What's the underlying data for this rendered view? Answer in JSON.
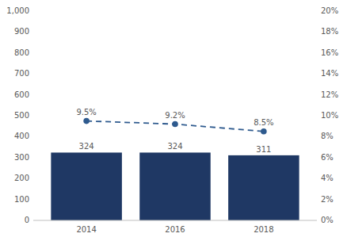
{
  "chart_data": {
    "type": "bar",
    "x": [
      2014,
      2016,
      2018
    ],
    "xlim": [
      2012.8,
      2019.2
    ],
    "xticks": [
      2014,
      2016,
      2018
    ],
    "ylim": [
      0,
      1000
    ],
    "yticks": [
      0,
      100,
      200,
      300,
      400,
      500,
      600,
      700,
      800,
      900,
      {
        "value": 1000,
        "label": "1,000"
      }
    ],
    "y2lim": [
      0,
      20
    ],
    "y2ticks": [
      {
        "value": 0,
        "label": "0%"
      },
      {
        "value": 2,
        "label": "2%"
      },
      {
        "value": 4,
        "label": "4%"
      },
      {
        "value": 6,
        "label": "6%"
      },
      {
        "value": 8,
        "label": "8%"
      },
      {
        "value": 10,
        "label": "10%"
      },
      {
        "value": 12,
        "label": "12%"
      },
      {
        "value": 14,
        "label": "14%"
      },
      {
        "value": 16,
        "label": "16%"
      },
      {
        "value": 18,
        "label": "18%"
      },
      {
        "value": 20,
        "label": "20%"
      }
    ],
    "grid": false,
    "data_labels": true,
    "series": [
      {
        "type": "bar",
        "color": "#1f3864",
        "values": [
          324,
          324,
          311
        ]
      },
      {
        "type": "line",
        "axis": "y2",
        "color": "#2e5a8e",
        "marker": "circle",
        "line_style": "dashed",
        "values": [
          9.5,
          9.2,
          8.5
        ],
        "value_labels": [
          "9.5%",
          "9.2%",
          "8.5%"
        ]
      }
    ]
  }
}
